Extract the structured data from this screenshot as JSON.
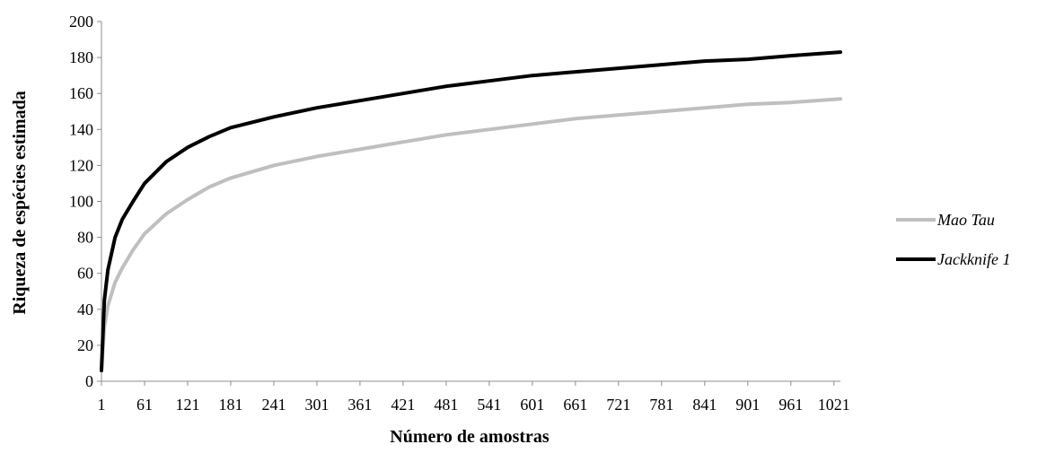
{
  "chart_data": {
    "type": "line",
    "title": "",
    "xlabel": "Número de amostras",
    "ylabel": "Riqueza de espécies estimada",
    "xlim": [
      1,
      1030
    ],
    "ylim": [
      0,
      200
    ],
    "x_ticks": [
      "1",
      "61",
      "121",
      "181",
      "241",
      "301",
      "361",
      "421",
      "481",
      "541",
      "601",
      "661",
      "721",
      "781",
      "841",
      "901",
      "961",
      "1021"
    ],
    "y_ticks": [
      0,
      20,
      40,
      60,
      80,
      100,
      120,
      140,
      160,
      180,
      200
    ],
    "grid": false,
    "legend_position": "right",
    "series": [
      {
        "name": "Mao Tau",
        "color": "#bfbfbf",
        "x": [
          1,
          5,
          10,
          20,
          30,
          45,
          61,
          91,
          121,
          151,
          181,
          241,
          301,
          361,
          421,
          481,
          541,
          601,
          661,
          721,
          781,
          841,
          901,
          961,
          1030
        ],
        "y": [
          6,
          30,
          42,
          55,
          63,
          73,
          82,
          93,
          101,
          108,
          113,
          120,
          125,
          129,
          133,
          137,
          140,
          143,
          146,
          148,
          150,
          152,
          154,
          155,
          157
        ]
      },
      {
        "name": "Jackknife 1",
        "color": "#000000",
        "x": [
          1,
          5,
          10,
          20,
          30,
          45,
          61,
          91,
          121,
          151,
          181,
          241,
          301,
          361,
          421,
          481,
          541,
          601,
          661,
          721,
          781,
          841,
          901,
          961,
          1030
        ],
        "y": [
          6,
          45,
          62,
          80,
          90,
          100,
          110,
          122,
          130,
          136,
          141,
          147,
          152,
          156,
          160,
          164,
          167,
          170,
          172,
          174,
          176,
          178,
          179,
          181,
          183
        ]
      }
    ]
  }
}
